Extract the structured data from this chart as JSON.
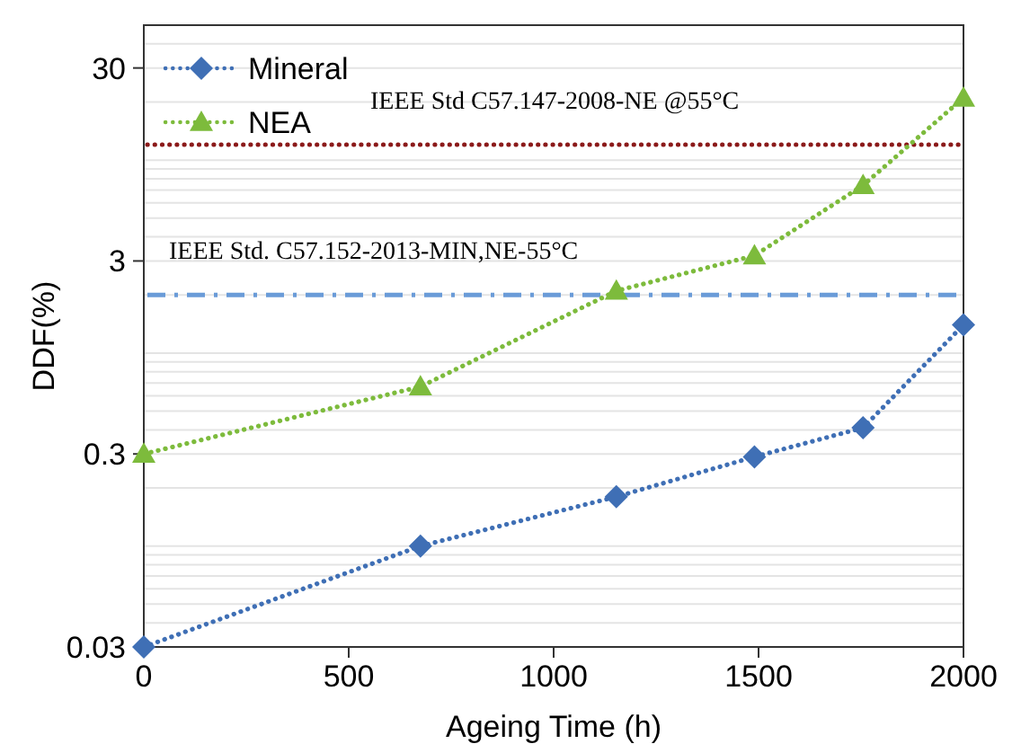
{
  "chart_data": {
    "type": "line",
    "xlabel": "Ageing Time (h)",
    "ylabel": "DDF(%)",
    "log": "y",
    "grid": "y",
    "legend": "top left",
    "line_style": "dotted",
    "xlim": [
      0,
      2000
    ],
    "xticks": [
      0,
      500,
      1000,
      1500,
      2000
    ],
    "ylim": [
      0.03,
      50
    ],
    "yticks": [
      0.03,
      {
        "value": 0.04,
        "label": null
      },
      {
        "value": 0.05,
        "label": null
      },
      {
        "value": 0.06,
        "label": null
      },
      {
        "value": 0.07,
        "label": null
      },
      {
        "value": 0.08,
        "label": null
      },
      {
        "value": 0.09,
        "label": null
      },
      {
        "value": 0.1,
        "label": null
      },
      {
        "value": 0.2,
        "label": null
      },
      0.3,
      {
        "value": 0.4,
        "label": null
      },
      {
        "value": 0.5,
        "label": null
      },
      {
        "value": 0.6,
        "label": null
      },
      {
        "value": 0.7,
        "label": null
      },
      {
        "value": 0.8,
        "label": null
      },
      {
        "value": 0.9,
        "label": null
      },
      {
        "value": 1,
        "label": null
      },
      {
        "value": 2,
        "label": null
      },
      3,
      {
        "value": 4,
        "label": null
      },
      {
        "value": 5,
        "label": null
      },
      {
        "value": 6,
        "label": null
      },
      {
        "value": 7,
        "label": null
      },
      {
        "value": 8,
        "label": null
      },
      {
        "value": 9,
        "label": null
      },
      {
        "value": 10,
        "label": null
      },
      {
        "value": 20,
        "label": null
      },
      30,
      {
        "value": 40,
        "label": null
      },
      {
        "value": 50,
        "label": null
      }
    ],
    "x": [
      0,
      675,
      1153,
      1490,
      1755,
      2000
    ],
    "series": [
      {
        "name": "Mineral",
        "color": "#3f6fb5",
        "marker": "diamond",
        "values": [
          0.03,
          0.1,
          0.18,
          0.29,
          0.41,
          1.4
        ]
      },
      {
        "name": "NEA",
        "color": "#7dbb3c",
        "marker": "triangle",
        "values": [
          0.3,
          0.67,
          2.1,
          3.2,
          7.4,
          21
        ]
      }
    ],
    "ref_lines": [
      {
        "axis": "y",
        "value": 12,
        "label": "IEEE Std C57.147-2008-NE @55°C",
        "color": "#8b1a1a",
        "line_style": "dotted"
      },
      {
        "axis": "y",
        "value": 2,
        "label": "IEEE Std. C57.152-2013-MIN,NE-55°C",
        "color": "#6a9bd8",
        "line_style": "dashdot"
      }
    ]
  }
}
